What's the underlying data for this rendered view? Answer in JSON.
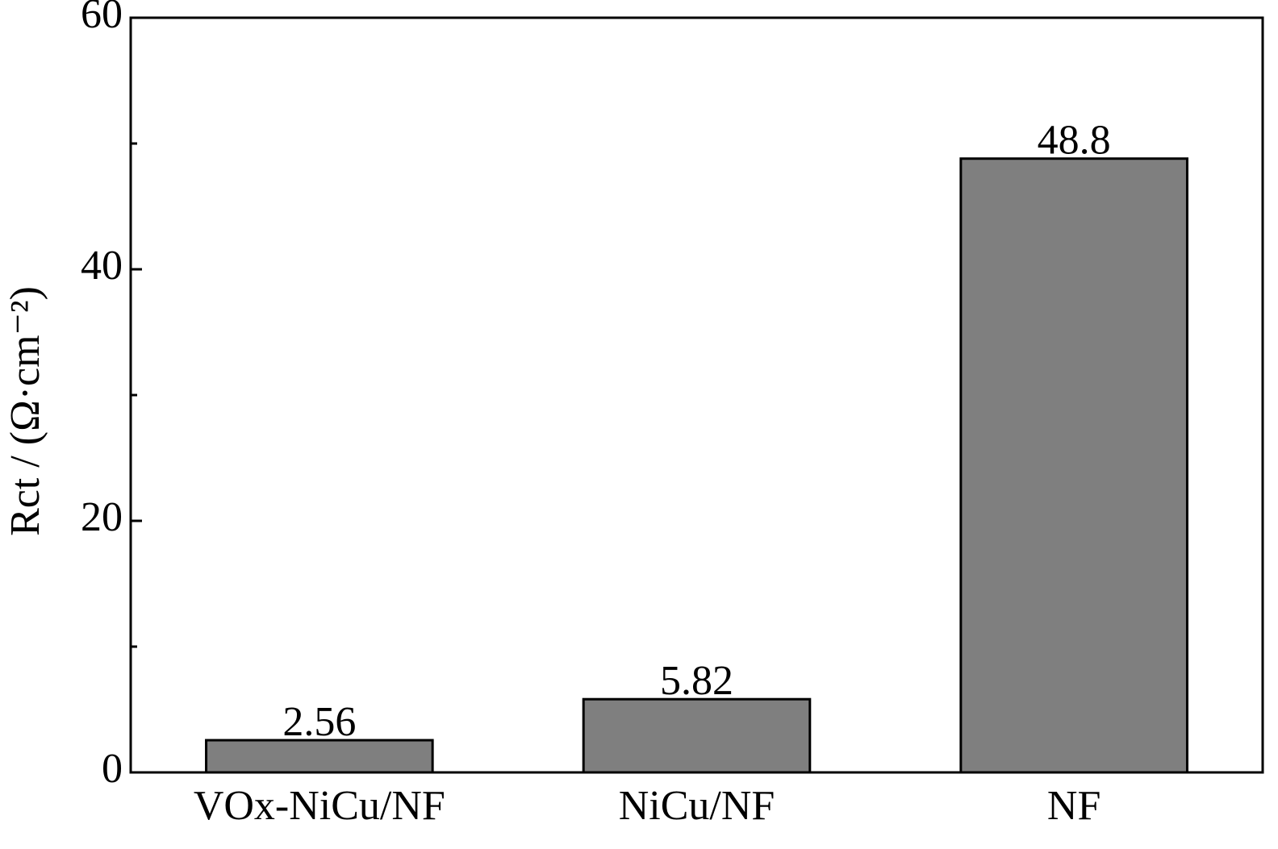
{
  "chart_data": {
    "type": "bar",
    "y_label": "Rct / (Ω·cm⁻²)",
    "categories": [
      "VOx-NiCu/NF",
      "NiCu/NF",
      "NF"
    ],
    "values": [
      2.56,
      5.82,
      48.8
    ],
    "color": "#7f7f7f",
    "ylim": [
      0,
      60
    ],
    "yticks": [
      0,
      20,
      40,
      60
    ],
    "yticks_minor": [
      10,
      30,
      50
    ]
  }
}
